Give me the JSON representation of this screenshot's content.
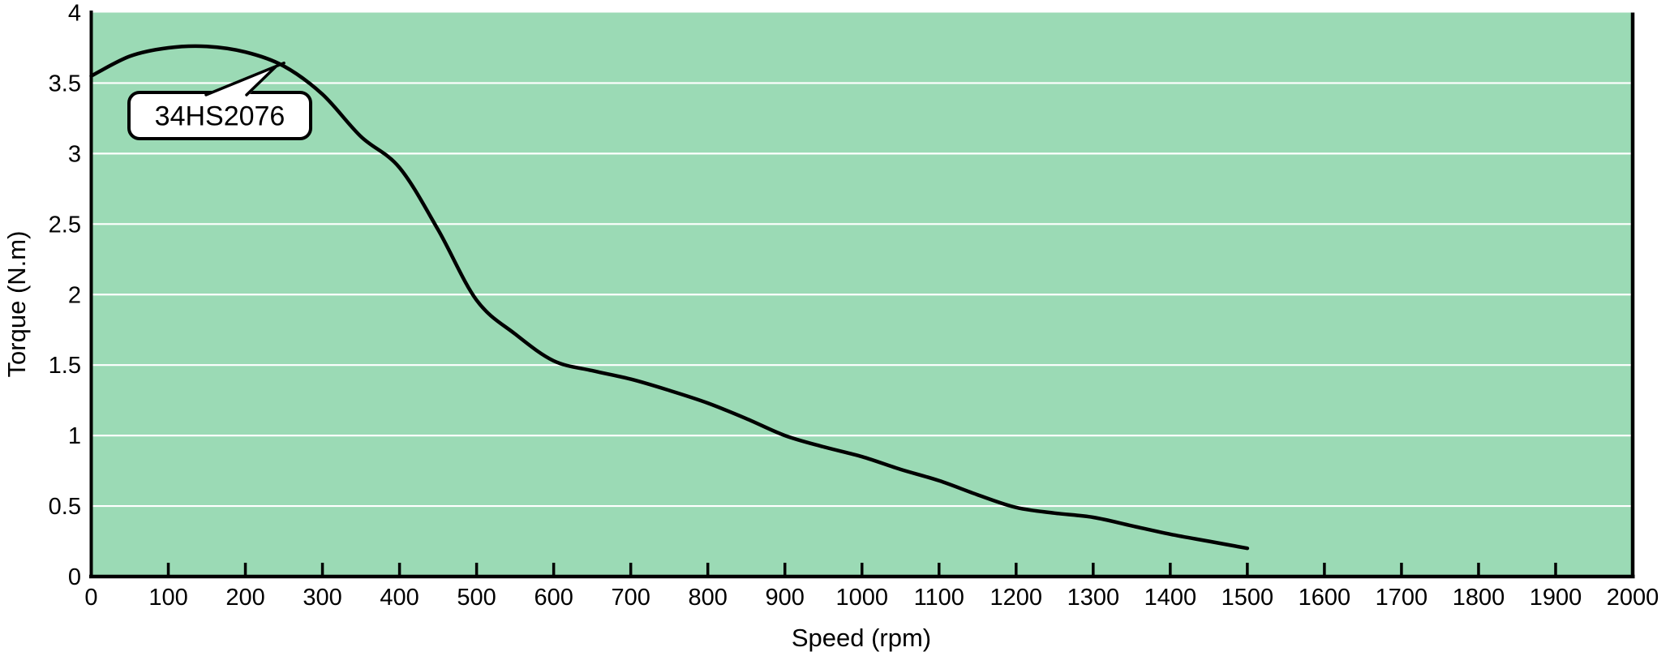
{
  "chart_data": {
    "type": "line",
    "title": "",
    "xlabel": "Speed (rpm)",
    "ylabel": "Torque (N.m)",
    "xlim": [
      0,
      2000
    ],
    "ylim": [
      0,
      4
    ],
    "xticks": [
      0,
      100,
      200,
      300,
      400,
      500,
      600,
      700,
      800,
      900,
      1000,
      1100,
      1200,
      1300,
      1400,
      1500,
      1600,
      1700,
      1800,
      1900,
      2000
    ],
    "yticks": [
      0,
      0.5,
      1,
      1.5,
      2,
      2.5,
      3,
      3.5,
      4
    ],
    "grid": {
      "horizontal": true,
      "vertical": false,
      "color": "#ffffff"
    },
    "legend_position": "none",
    "plot_bg": "#9bdab5",
    "line_color": "#000000",
    "axis_color": "#000000",
    "annotation": {
      "label": "34HS2076",
      "points_to": {
        "x": 240,
        "y": 3.62
      }
    },
    "series": [
      {
        "name": "34HS2076",
        "points": [
          [
            0,
            3.55
          ],
          [
            50,
            3.69
          ],
          [
            100,
            3.75
          ],
          [
            150,
            3.76
          ],
          [
            200,
            3.72
          ],
          [
            250,
            3.62
          ],
          [
            300,
            3.42
          ],
          [
            350,
            3.12
          ],
          [
            400,
            2.9
          ],
          [
            450,
            2.46
          ],
          [
            500,
            1.96
          ],
          [
            550,
            1.72
          ],
          [
            600,
            1.53
          ],
          [
            650,
            1.46
          ],
          [
            700,
            1.4
          ],
          [
            750,
            1.32
          ],
          [
            800,
            1.23
          ],
          [
            850,
            1.12
          ],
          [
            900,
            1.0
          ],
          [
            950,
            0.92
          ],
          [
            1000,
            0.85
          ],
          [
            1050,
            0.76
          ],
          [
            1100,
            0.68
          ],
          [
            1150,
            0.58
          ],
          [
            1200,
            0.49
          ],
          [
            1250,
            0.45
          ],
          [
            1300,
            0.42
          ],
          [
            1350,
            0.36
          ],
          [
            1400,
            0.3
          ],
          [
            1450,
            0.25
          ],
          [
            1500,
            0.2
          ]
        ]
      }
    ]
  }
}
